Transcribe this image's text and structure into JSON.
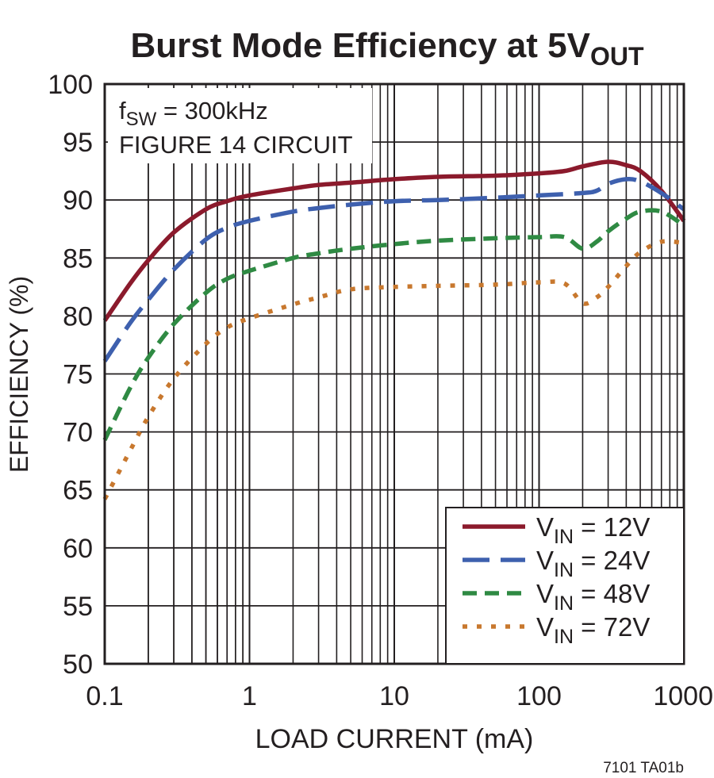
{
  "chart_data": {
    "type": "line",
    "title": "Burst Mode Efficiency at 5V",
    "title_subscript": "OUT",
    "xlabel": "LOAD CURRENT (mA)",
    "ylabel": "EFFICIENCY (%)",
    "x_scale": "log",
    "xlim": [
      0.1,
      1000
    ],
    "ylim": [
      50,
      100
    ],
    "grid": true,
    "x_ticks": [
      {
        "value": 0.1,
        "label": "0.1"
      },
      {
        "value": 1,
        "label": "1"
      },
      {
        "value": 10,
        "label": "10"
      },
      {
        "value": 100,
        "label": "100"
      },
      {
        "value": 1000,
        "label": "1000"
      }
    ],
    "y_ticks": [
      {
        "value": 100,
        "label": "100"
      },
      {
        "value": 95,
        "label": "95"
      },
      {
        "value": 90,
        "label": "90"
      },
      {
        "value": 85,
        "label": "85"
      },
      {
        "value": 80,
        "label": "80"
      },
      {
        "value": 75,
        "label": "75"
      },
      {
        "value": 70,
        "label": "70"
      },
      {
        "value": 65,
        "label": "65"
      },
      {
        "value": 60,
        "label": "60"
      },
      {
        "value": 55,
        "label": "55"
      },
      {
        "value": 50,
        "label": "50"
      }
    ],
    "annotation": {
      "line1_main": "f",
      "line1_sub": "SW",
      "line1_rest": " = 300kHz",
      "line2": "FIGURE 14 CIRCUIT"
    },
    "legend_position": "bottom-right",
    "series": [
      {
        "name": "V",
        "name_subscript": "IN",
        "name_rest": " = 12V",
        "color": "#8b1a2c",
        "dash": "solid",
        "points": [
          [
            0.1,
            79.6
          ],
          [
            0.15,
            82.8
          ],
          [
            0.2,
            84.8
          ],
          [
            0.3,
            87.2
          ],
          [
            0.5,
            89.2
          ],
          [
            0.7,
            89.9
          ],
          [
            1,
            90.4
          ],
          [
            2,
            91.0
          ],
          [
            3,
            91.3
          ],
          [
            5,
            91.5
          ],
          [
            10,
            91.8
          ],
          [
            20,
            92.0
          ],
          [
            50,
            92.1
          ],
          [
            100,
            92.3
          ],
          [
            150,
            92.5
          ],
          [
            200,
            92.9
          ],
          [
            300,
            93.3
          ],
          [
            400,
            93.0
          ],
          [
            500,
            92.5
          ],
          [
            700,
            90.8
          ],
          [
            1000,
            88.2
          ]
        ]
      },
      {
        "name": "V",
        "name_subscript": "IN",
        "name_rest": " = 24V",
        "color": "#3e60ae",
        "dash": "long-dash",
        "points": [
          [
            0.1,
            76.1
          ],
          [
            0.15,
            79.4
          ],
          [
            0.2,
            81.4
          ],
          [
            0.3,
            84.0
          ],
          [
            0.5,
            86.6
          ],
          [
            0.7,
            87.6
          ],
          [
            1,
            88.2
          ],
          [
            2,
            89.0
          ],
          [
            3,
            89.3
          ],
          [
            5,
            89.6
          ],
          [
            10,
            89.9
          ],
          [
            20,
            90.0
          ],
          [
            50,
            90.2
          ],
          [
            100,
            90.4
          ],
          [
            200,
            90.6
          ],
          [
            250,
            90.8
          ],
          [
            300,
            91.4
          ],
          [
            400,
            91.8
          ],
          [
            500,
            91.6
          ],
          [
            700,
            90.6
          ],
          [
            1000,
            89.2
          ]
        ]
      },
      {
        "name": "V",
        "name_subscript": "IN",
        "name_rest": " = 48V",
        "color": "#2f8a43",
        "dash": "short-dash",
        "points": [
          [
            0.1,
            69.3
          ],
          [
            0.15,
            73.8
          ],
          [
            0.2,
            76.4
          ],
          [
            0.3,
            79.3
          ],
          [
            0.5,
            82.0
          ],
          [
            0.7,
            83.2
          ],
          [
            1,
            83.9
          ],
          [
            2,
            85.0
          ],
          [
            3,
            85.4
          ],
          [
            5,
            85.8
          ],
          [
            10,
            86.2
          ],
          [
            20,
            86.5
          ],
          [
            50,
            86.7
          ],
          [
            100,
            86.8
          ],
          [
            150,
            86.8
          ],
          [
            200,
            85.8
          ],
          [
            250,
            86.4
          ],
          [
            300,
            87.3
          ],
          [
            400,
            88.4
          ],
          [
            500,
            89.0
          ],
          [
            700,
            89.0
          ],
          [
            1000,
            87.8
          ]
        ]
      },
      {
        "name": "V",
        "name_subscript": "IN",
        "name_rest": " = 72V",
        "color": "#c8782e",
        "dash": "dot",
        "points": [
          [
            0.1,
            64.2
          ],
          [
            0.15,
            68.4
          ],
          [
            0.2,
            71.3
          ],
          [
            0.3,
            74.6
          ],
          [
            0.5,
            77.6
          ],
          [
            0.7,
            79.0
          ],
          [
            1,
            79.8
          ],
          [
            2,
            81.0
          ],
          [
            3,
            81.6
          ],
          [
            5,
            82.3
          ],
          [
            10,
            82.5
          ],
          [
            20,
            82.6
          ],
          [
            50,
            82.7
          ],
          [
            100,
            82.9
          ],
          [
            150,
            82.8
          ],
          [
            200,
            81.1
          ],
          [
            250,
            81.6
          ],
          [
            300,
            82.5
          ],
          [
            400,
            84.3
          ],
          [
            500,
            85.5
          ],
          [
            700,
            86.4
          ],
          [
            1000,
            86.3
          ]
        ]
      }
    ],
    "footnote": "7101 TA01b"
  }
}
